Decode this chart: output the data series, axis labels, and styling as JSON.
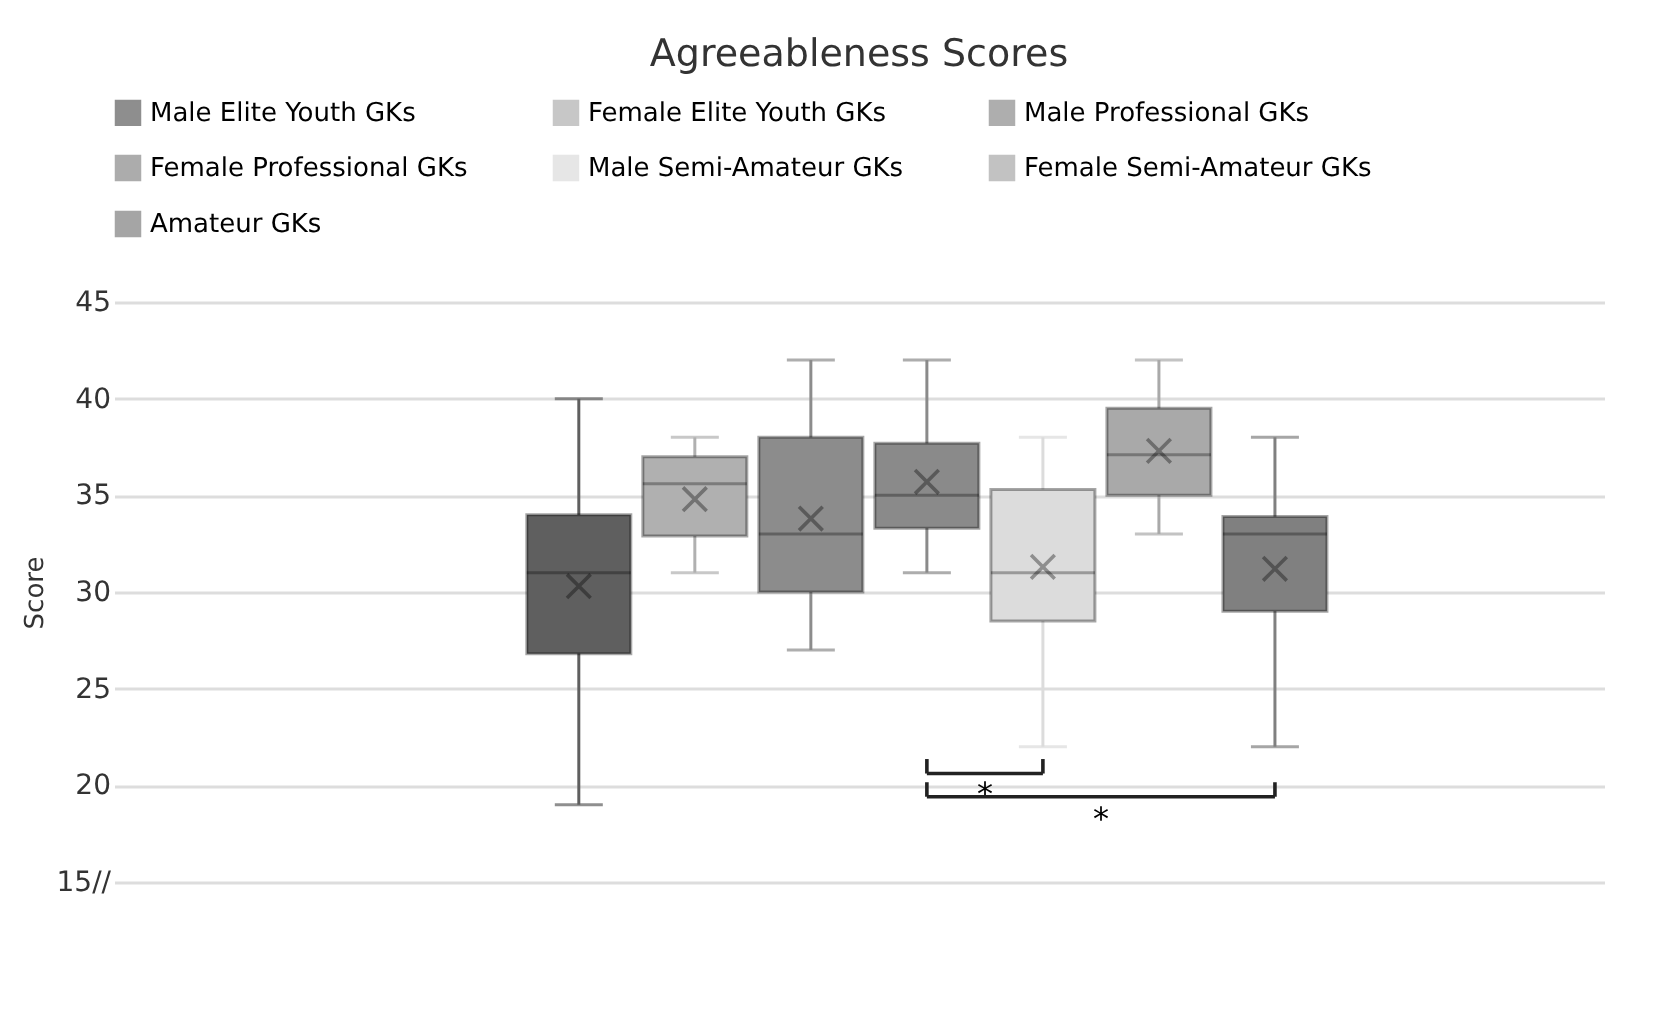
{
  "chart_data": {
    "type": "box",
    "title": "Agreeableness Scores",
    "ylabel": "Score",
    "categories": [
      null
    ],
    "series": [
      {
        "name": "Male Elite Youth GKs",
        "color": "#5f5f5f",
        "boxes": [
          {
            "low": 19,
            "q1": 26.8,
            "median": 31,
            "q3": 34,
            "high": 40,
            "mean": 30.3
          }
        ]
      },
      {
        "name": "Female Elite Youth GKs",
        "color": "#b0b0b0",
        "boxes": [
          {
            "low": 31,
            "q1": 32.9,
            "median": 35.6,
            "q3": 37,
            "high": 38,
            "mean": 34.8
          }
        ]
      },
      {
        "name": "Male Professional GKs",
        "color": "#8c8c8c",
        "boxes": [
          {
            "low": 27,
            "q1": 30,
            "median": 33,
            "q3": 38,
            "high": 42,
            "mean": 33.8
          }
        ]
      },
      {
        "name": "Female Professional GKs",
        "color": "#8a8a8a",
        "boxes": [
          {
            "low": 31,
            "q1": 33.3,
            "median": 35,
            "q3": 37.7,
            "high": 42,
            "mean": 35.7
          }
        ]
      },
      {
        "name": "Male Semi-Amateur GKs",
        "color": "#dcdcdc",
        "boxes": [
          {
            "low": 22,
            "q1": 28.5,
            "median": 31,
            "q3": 35.3,
            "high": 38,
            "mean": 31.3
          }
        ]
      },
      {
        "name": "Female Semi-Amateur GKs",
        "color": "#a9a9a9",
        "boxes": [
          {
            "low": 33,
            "q1": 35,
            "median": 37.1,
            "q3": 39.5,
            "high": 42,
            "mean": 37.3
          }
        ]
      },
      {
        "name": "Amateur GKs",
        "color": "#808080",
        "boxes": [
          {
            "low": 22,
            "q1": 29,
            "median": 33,
            "q3": 33.9,
            "high": 38,
            "mean": 31.2
          }
        ]
      }
    ],
    "ylim": [
      15,
      45
    ],
    "yticks": [
      {
        "value": 15,
        "label": "15//"
      },
      20,
      25,
      30,
      35,
      40,
      45
    ],
    "grid": "y",
    "legend": "top",
    "annotations": [
      "*",
      "*"
    ]
  }
}
